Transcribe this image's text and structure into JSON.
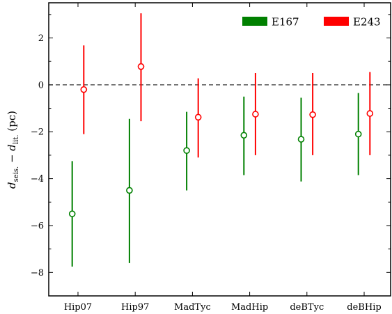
{
  "chart_data": {
    "type": "scatter",
    "ylabel_parts": {
      "d": "d",
      "sub1": "seis.",
      "minus": " − ",
      "sub2": "lit.",
      "unit": " (pc)"
    },
    "categories": [
      "Hip07",
      "Hip97",
      "MadTyc",
      "MadHip",
      "deBTyc",
      "deBHip"
    ],
    "ylim": [
      -9.0,
      3.5
    ],
    "yticks": [
      -8,
      -6,
      -4,
      -2,
      0,
      2
    ],
    "ytick_labels": [
      "−8",
      "−6",
      "−4",
      "−2",
      "0",
      "2"
    ],
    "reference_line": {
      "y": 0,
      "style": "dashed"
    },
    "grid": false,
    "legend_position": "top-right",
    "series": [
      {
        "name": "E167",
        "color": "#008000",
        "values": [
          -5.5,
          -4.5,
          -2.8,
          -2.15,
          -2.32,
          -2.1
        ],
        "lower": [
          -7.75,
          -7.6,
          -4.5,
          -3.85,
          -4.12,
          -3.85
        ],
        "upper": [
          -3.25,
          -1.45,
          -1.15,
          -0.5,
          -0.55,
          -0.35
        ]
      },
      {
        "name": "E243",
        "color": "#ff0000",
        "values": [
          -0.2,
          0.78,
          -1.38,
          -1.25,
          -1.27,
          -1.22
        ],
        "lower": [
          -2.1,
          -1.55,
          -3.1,
          -3.0,
          -3.0,
          -3.0
        ],
        "upper": [
          1.68,
          3.05,
          0.28,
          0.5,
          0.5,
          0.55
        ]
      }
    ]
  }
}
